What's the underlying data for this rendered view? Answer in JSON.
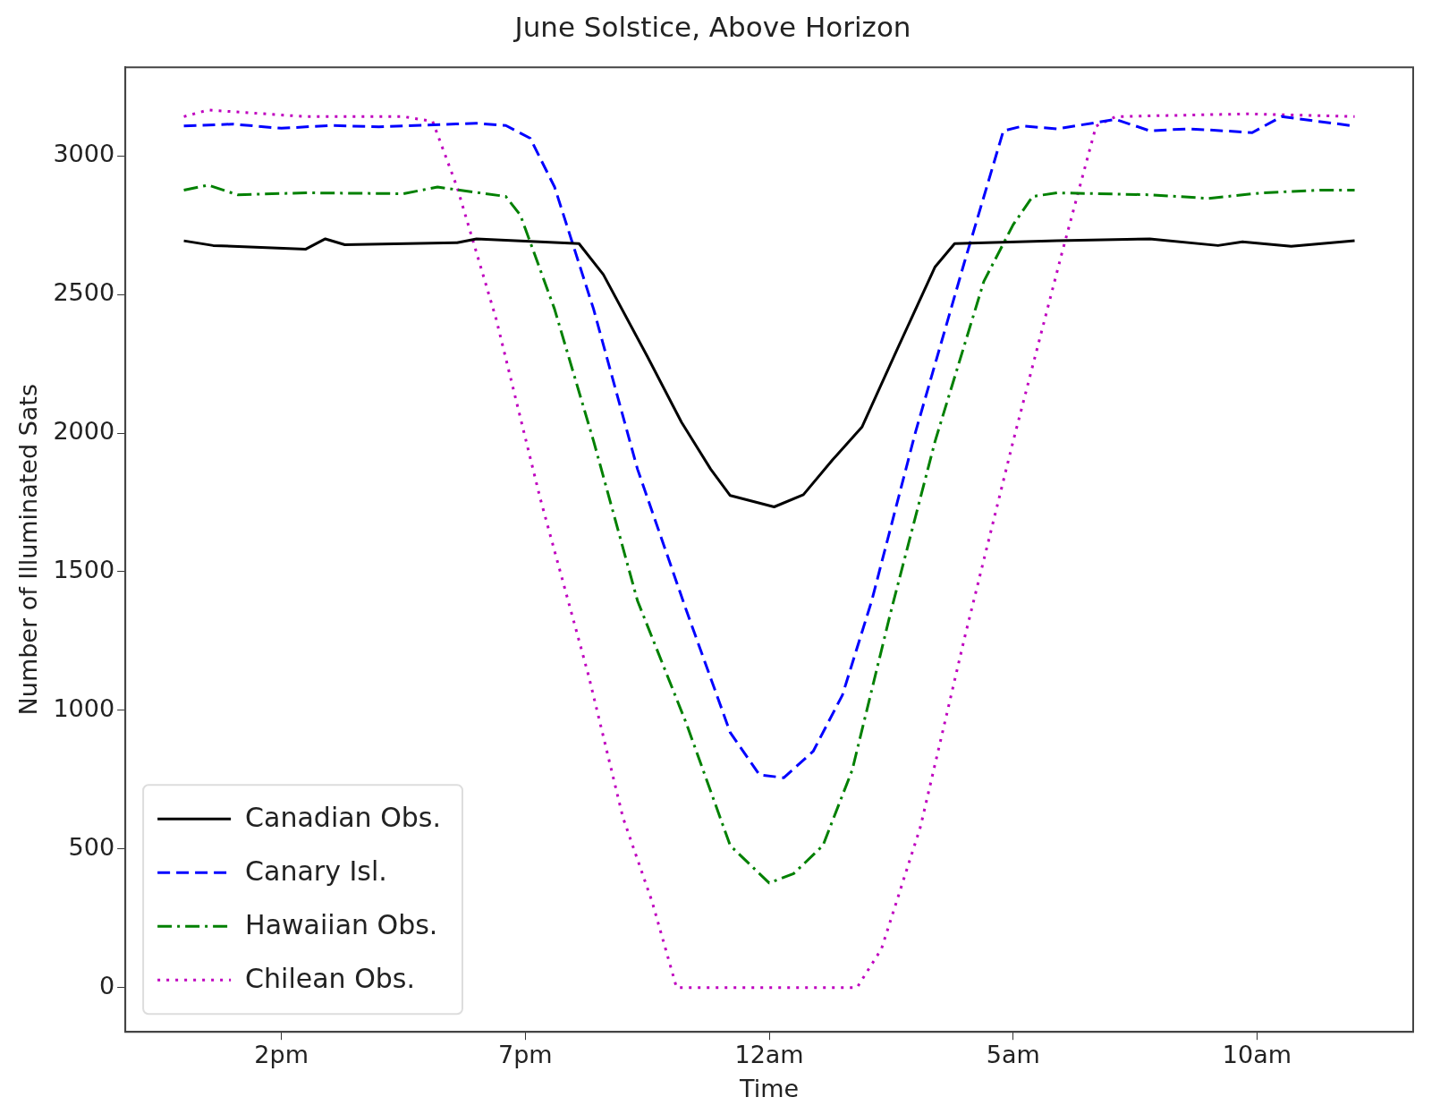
{
  "chart_data": {
    "type": "line",
    "title": "June Solstice, Above Horizon",
    "xlabel": "Time",
    "ylabel": "Number of Illuminated Sats",
    "xlim": [
      "--06-20T10:48",
      "--06-21T13:12"
    ],
    "ylim": [
      -160,
      3320
    ],
    "xticks": [
      {
        "value": "--06-20T14:00",
        "label": "2pm"
      },
      {
        "value": "--06-20T19:00",
        "label": "7pm"
      },
      {
        "value": "--06-21T00:00",
        "label": "12am"
      },
      {
        "value": "--06-21T05:00",
        "label": "5am"
      },
      {
        "value": "--06-21T10:00",
        "label": "10am"
      }
    ],
    "yticks": [
      0,
      500,
      1000,
      1500,
      2000,
      2500,
      3000
    ],
    "grid": false,
    "legend": "bottom left",
    "marker": "none",
    "series": [
      {
        "name": "Canadian Obs.",
        "color": "#000000",
        "line_style": "solid",
        "x": [
          "--06-20T12:00",
          "--06-20T12:36",
          "--06-20T14:30",
          "--06-20T14:54",
          "--06-20T15:18",
          "--06-20T17:36",
          "--06-20T18:00",
          "--06-20T20:06",
          "--06-20T20:36",
          "--06-20T21:30",
          "--06-20T22:12",
          "--06-20T22:48",
          "--06-20T23:12",
          "--06-21T00:06",
          "--06-21T00:42",
          "--06-21T01:18",
          "--06-21T01:54",
          "--06-21T02:36",
          "--06-21T03:24",
          "--06-21T03:48",
          "--06-21T05:54",
          "--06-21T07:48",
          "--06-21T09:12",
          "--06-21T09:42",
          "--06-21T10:42",
          "--06-21T12:00"
        ],
        "values": [
          2694,
          2677,
          2664,
          2701,
          2680,
          2687,
          2701,
          2684,
          2572,
          2277,
          2040,
          1870,
          1775,
          1734,
          1778,
          1904,
          2022,
          2294,
          2600,
          2684,
          2694,
          2701,
          2677,
          2690,
          2674,
          2694
        ]
      },
      {
        "name": "Canary Isl.",
        "color": "#0000ff",
        "line_style": "dashed",
        "x": [
          "--06-20T12:00",
          "--06-20T13:00",
          "--06-20T14:00",
          "--06-20T15:00",
          "--06-20T16:00",
          "--06-20T17:00",
          "--06-20T18:00",
          "--06-20T18:36",
          "--06-20T19:06",
          "--06-20T19:36",
          "--06-20T20:24",
          "--06-20T21:18",
          "--06-20T22:18",
          "--06-20T23:12",
          "--06-20T23:48",
          "--06-21T00:18",
          "--06-21T00:54",
          "--06-21T01:30",
          "--06-21T02:06",
          "--06-21T03:00",
          "--06-21T04:00",
          "--06-21T04:48",
          "--06-21T05:12",
          "--06-21T05:54",
          "--06-21T07:06",
          "--06-21T07:48",
          "--06-21T08:36",
          "--06-21T09:18",
          "--06-21T09:54",
          "--06-21T10:30",
          "--06-21T12:00"
        ],
        "values": [
          3108,
          3115,
          3100,
          3110,
          3105,
          3112,
          3118,
          3110,
          3064,
          2888,
          2447,
          1870,
          1361,
          920,
          767,
          757,
          852,
          1055,
          1395,
          2005,
          2616,
          3091,
          3108,
          3098,
          3132,
          3091,
          3098,
          3091,
          3084,
          3142,
          3108
        ]
      },
      {
        "name": "Hawaiian Obs.",
        "color": "#008000",
        "line_style": "dashdot",
        "x": [
          "--06-20T12:00",
          "--06-20T12:30",
          "--06-20T13:06",
          "--06-20T14:30",
          "--06-20T16:30",
          "--06-20T17:12",
          "--06-20T18:36",
          "--06-20T18:54",
          "--06-20T19:36",
          "--06-20T20:24",
          "--06-20T21:18",
          "--06-20T22:18",
          "--06-20T23:12",
          "--06-21T00:00",
          "--06-21T00:30",
          "--06-21T01:06",
          "--06-21T01:42",
          "--06-21T02:30",
          "--06-21T03:24",
          "--06-21T04:24",
          "--06-21T05:00",
          "--06-21T05:24",
          "--06-21T05:54",
          "--06-21T07:48",
          "--06-21T09:00",
          "--06-21T10:06",
          "--06-21T11:18",
          "--06-21T12:00"
        ],
        "values": [
          2877,
          2895,
          2860,
          2867,
          2864,
          2888,
          2854,
          2786,
          2447,
          1971,
          1395,
          953,
          512,
          377,
          411,
          512,
          784,
          1361,
          1971,
          2548,
          2752,
          2854,
          2867,
          2860,
          2847,
          2867,
          2877,
          2877
        ]
      },
      {
        "name": "Chilean Obs.",
        "color": "#bf00bf",
        "line_style": "dotted",
        "x": [
          "--06-20T12:00",
          "--06-20T12:30",
          "--06-20T14:30",
          "--06-20T16:30",
          "--06-20T17:06",
          "--06-20T17:36",
          "--06-20T18:24",
          "--06-20T19:18",
          "--06-20T20:18",
          "--06-20T21:00",
          "--06-20T21:36",
          "--06-20T22:06",
          "--06-21T01:48",
          "--06-21T02:18",
          "--06-21T03:06",
          "--06-21T04:00",
          "--06-21T05:00",
          "--06-21T06:00",
          "--06-21T06:42",
          "--06-21T07:06",
          "--06-21T09:48",
          "--06-21T12:00"
        ],
        "values": [
          3142,
          3166,
          3142,
          3142,
          3125,
          2888,
          2413,
          1768,
          1123,
          614,
          309,
          0,
          0,
          139,
          580,
          1259,
          1971,
          2650,
          3108,
          3142,
          3152,
          3142
        ]
      }
    ]
  }
}
